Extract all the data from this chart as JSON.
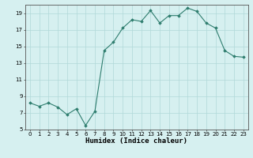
{
  "xlabel": "Humidex (Indice chaleur)",
  "x_values": [
    0,
    1,
    2,
    3,
    4,
    5,
    6,
    7,
    8,
    9,
    10,
    11,
    12,
    13,
    14,
    15,
    16,
    17,
    18,
    19,
    20,
    21,
    22,
    23
  ],
  "y_values": [
    8.2,
    7.8,
    8.2,
    7.7,
    6.8,
    7.5,
    5.5,
    7.2,
    14.5,
    15.5,
    17.2,
    18.2,
    18.0,
    19.3,
    17.8,
    18.7,
    18.7,
    19.6,
    19.2,
    17.8,
    17.2,
    14.5,
    13.8,
    13.7
  ],
  "line_color": "#2e7d6e",
  "marker_color": "#2e7d6e",
  "bg_color": "#d6f0f0",
  "grid_color": "#b0d8d8",
  "ylim": [
    5,
    20
  ],
  "yticks": [
    5,
    7,
    9,
    11,
    13,
    15,
    17,
    19
  ],
  "xlim": [
    -0.5,
    23.5
  ],
  "xlabel_fontsize": 6.5,
  "tick_fontsize": 5.0
}
